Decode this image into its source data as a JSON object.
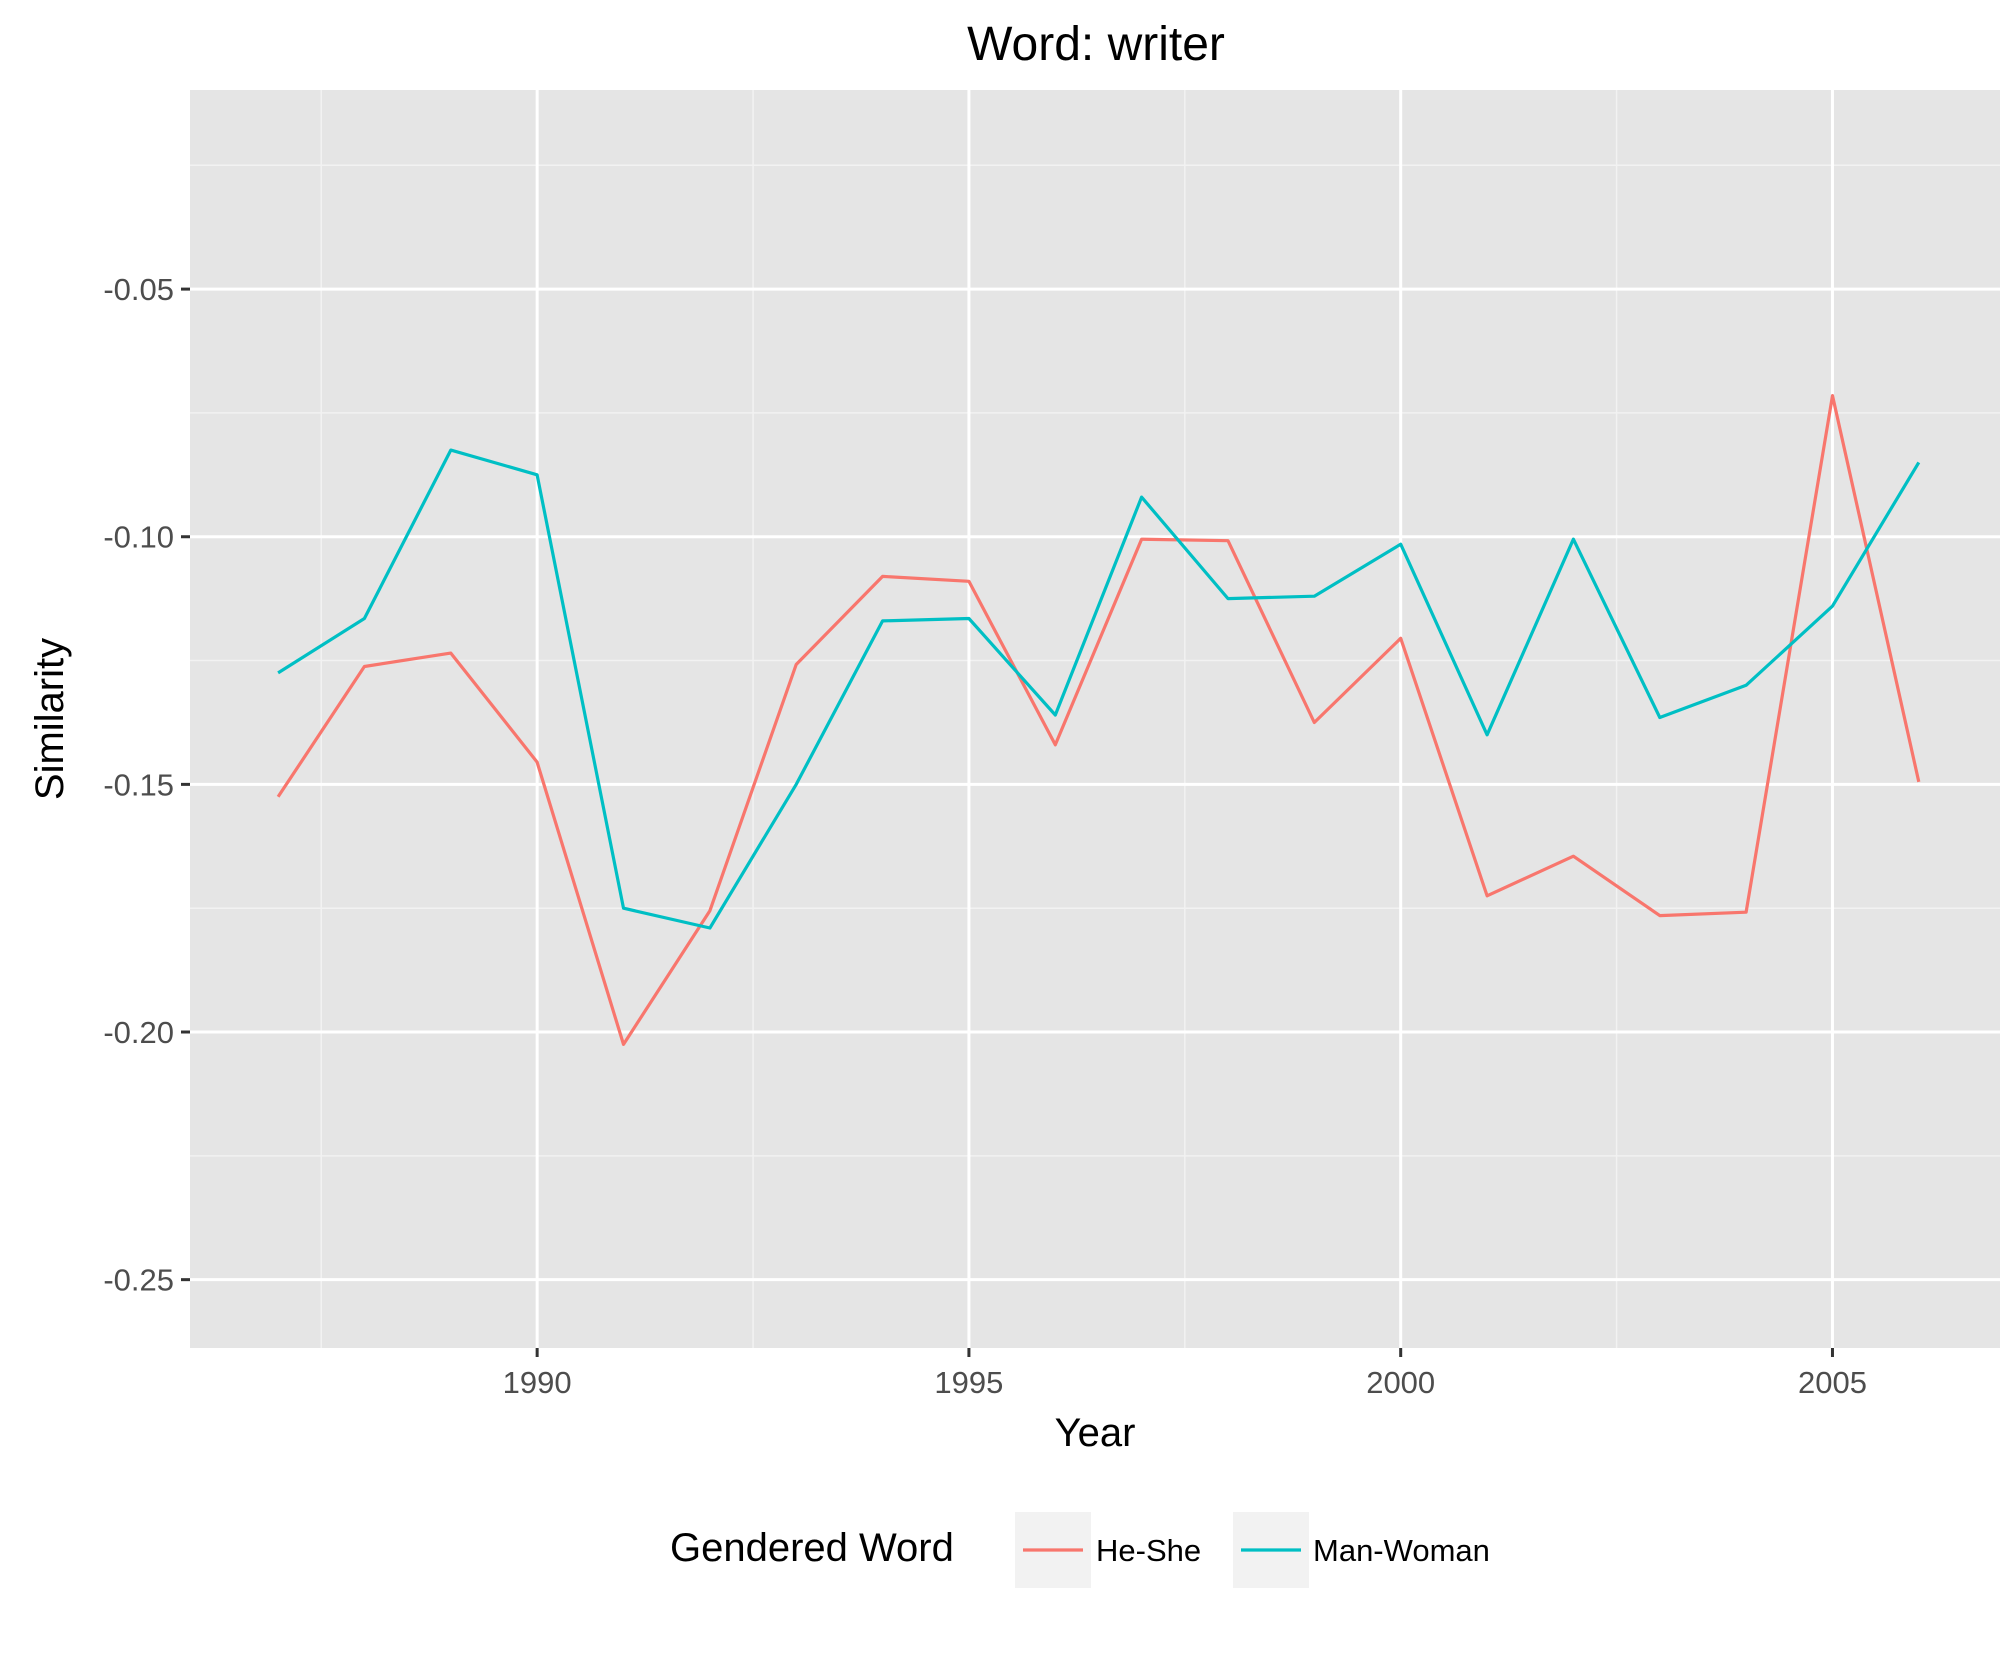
{
  "chart_data": {
    "type": "line",
    "title": "Word: writer",
    "xlabel": "Year",
    "ylabel": "Similarity",
    "x": [
      1987,
      1988,
      1989,
      1990,
      1991,
      1992,
      1993,
      1994,
      1995,
      1996,
      1997,
      1998,
      1999,
      2000,
      2001,
      2002,
      2003,
      2004,
      2005,
      2006
    ],
    "series": [
      {
        "name": "He-She",
        "color": "#F8766D",
        "values": [
          -0.1525,
          -0.1262,
          -0.1235,
          -0.1455,
          -0.2025,
          -0.1755,
          -0.1258,
          -0.108,
          -0.109,
          -0.142,
          -0.1005,
          -0.1008,
          -0.1375,
          -0.1205,
          -0.1725,
          -0.1645,
          -0.1765,
          -0.1758,
          -0.0715,
          -0.1495
        ]
      },
      {
        "name": "Man-Woman",
        "color": "#00BFC4",
        "values": [
          -0.1275,
          -0.1165,
          -0.0825,
          -0.0875,
          -0.175,
          -0.179,
          -0.15,
          -0.117,
          -0.1165,
          -0.136,
          -0.092,
          -0.1125,
          -0.112,
          -0.1015,
          -0.14,
          -0.1005,
          -0.1365,
          -0.13,
          -0.114,
          -0.085
        ]
      }
    ],
    "xlim": [
      1985.98,
      2006.94
    ],
    "ylim": [
      -0.2638,
      -0.0098
    ],
    "x_ticks": [
      1990,
      1995,
      2000,
      2005
    ],
    "x_tick_labels": [
      "1990",
      "1995",
      "2000",
      "2005"
    ],
    "x_minor_ticks": [
      1987.5,
      1992.5,
      1997.5,
      2002.5
    ],
    "y_ticks": [
      -0.25,
      -0.2,
      -0.15,
      -0.1,
      -0.05
    ],
    "y_tick_labels": [
      "-0.25",
      "-0.20",
      "-0.15",
      "-0.10",
      "-0.05"
    ],
    "y_minor_ticks": [
      -0.225,
      -0.175,
      -0.125,
      -0.075,
      -0.025
    ],
    "grid": true,
    "legend": {
      "title": "Gendered Word",
      "position": "bottom"
    }
  }
}
